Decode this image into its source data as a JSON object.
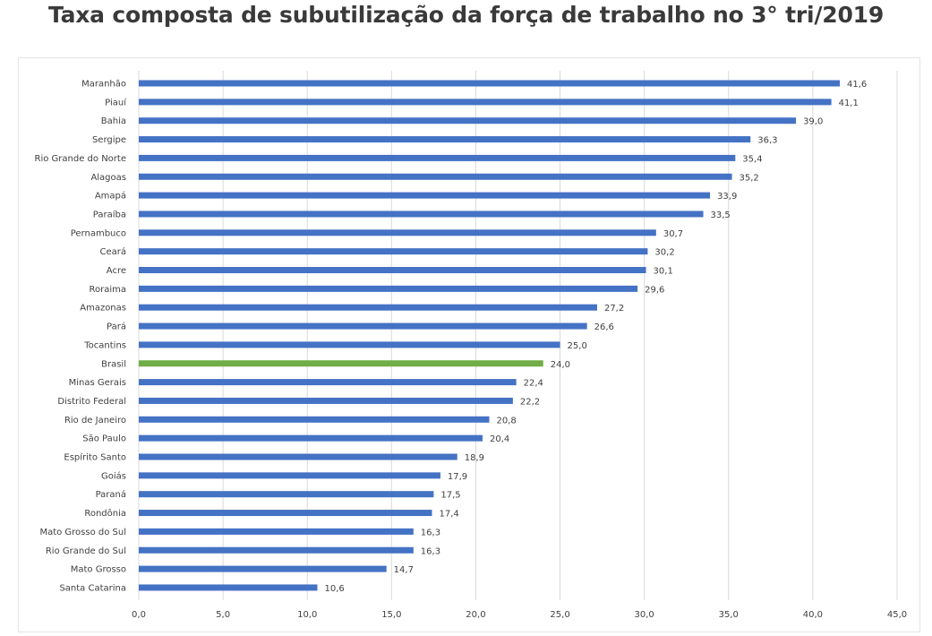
{
  "page": {
    "title": "Taxa composta de subutilização da força de trabalho no 3° tri/2019"
  },
  "chart_data": {
    "type": "bar",
    "orientation": "horizontal",
    "title": "Taxa composta de subutilização da força de trabalho no 3° tri/2019",
    "xlabel": "",
    "ylabel": "",
    "xlim": [
      0,
      45
    ],
    "grid": true,
    "legend": "none",
    "x_ticks": [
      "0,0",
      "5,0",
      "10,0",
      "15,0",
      "20,0",
      "25,0",
      "30,0",
      "35,0",
      "40,0",
      "45,0"
    ],
    "x_tick_values": [
      0,
      5,
      10,
      15,
      20,
      25,
      30,
      35,
      40,
      45
    ],
    "colors": {
      "default": "#4472c4",
      "highlight": "#70ad47",
      "grid": "#d9d9d9"
    },
    "highlight_category": "Brasil",
    "categories": [
      "Maranhão",
      "Piauí",
      "Bahia",
      "Sergipe",
      "Rio Grande do Norte",
      "Alagoas",
      "Amapá",
      "Paraíba",
      "Pernambuco",
      "Ceará",
      "Acre",
      "Roraima",
      "Amazonas",
      "Pará",
      "Tocantins",
      "Brasil",
      "Minas Gerais",
      "Distrito Federal",
      "Rio de Janeiro",
      "São Paulo",
      "Espírito Santo",
      "Goiás",
      "Paraná",
      "Rondônia",
      "Mato Grosso do Sul",
      "Rio Grande do Sul",
      "Mato Grosso",
      "Santa Catarina"
    ],
    "values": [
      41.6,
      41.1,
      39.0,
      36.3,
      35.4,
      35.2,
      33.9,
      33.5,
      30.7,
      30.2,
      30.1,
      29.6,
      27.2,
      26.6,
      25.0,
      24.0,
      22.4,
      22.2,
      20.8,
      20.4,
      18.9,
      17.9,
      17.5,
      17.4,
      16.3,
      16.3,
      14.7,
      10.6
    ],
    "value_labels": [
      "41,6",
      "41,1",
      "39,0",
      "36,3",
      "35,4",
      "35,2",
      "33,9",
      "33,5",
      "30,7",
      "30,2",
      "30,1",
      "29,6",
      "27,2",
      "26,6",
      "25,0",
      "24,0",
      "22,4",
      "22,2",
      "20,8",
      "20,4",
      "18,9",
      "17,9",
      "17,5",
      "17,4",
      "16,3",
      "16,3",
      "14,7",
      "10,6"
    ]
  }
}
